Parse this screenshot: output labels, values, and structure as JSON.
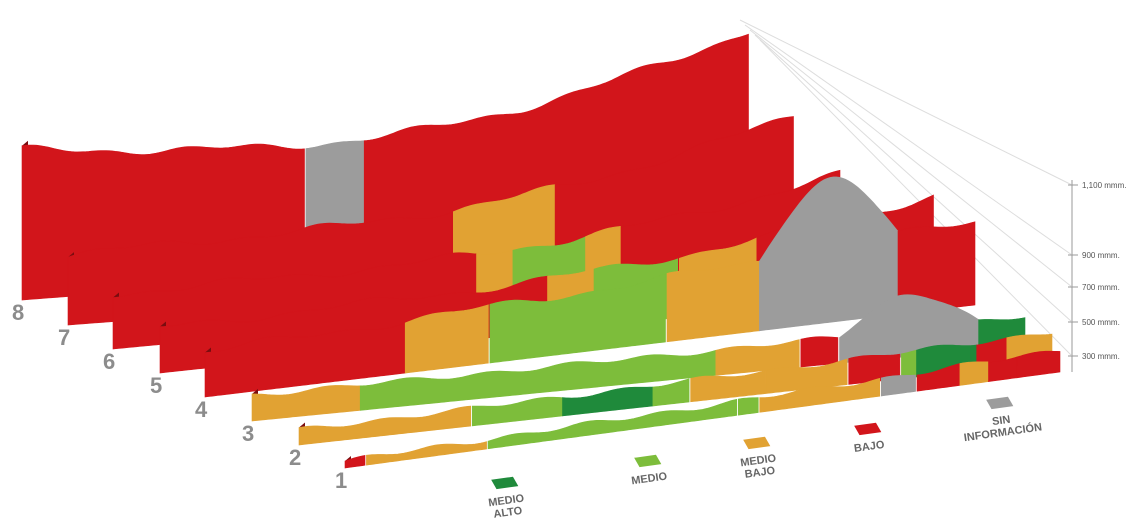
{
  "row_labels": [
    "1",
    "2",
    "3",
    "4",
    "5",
    "6",
    "7",
    "8"
  ],
  "axis_labels": [
    "300 mmm.",
    "500 mmm.",
    "700 mmm.",
    "900 mmm.",
    "1,100 mmm."
  ],
  "legend": [
    {
      "lines": [
        "MEDIO",
        "ALTO"
      ],
      "color": "#1f8a3b"
    },
    {
      "lines": [
        "MEDIO"
      ],
      "color": "#7dbd3b"
    },
    {
      "lines": [
        "MEDIO",
        "BAJO"
      ],
      "color": "#e1a233"
    },
    {
      "lines": [
        "BAJO"
      ],
      "color": "#d2151b"
    },
    {
      "lines": [
        "SIN",
        "INFORMACIÓN"
      ],
      "color": "#9c9c9c"
    }
  ]
}
